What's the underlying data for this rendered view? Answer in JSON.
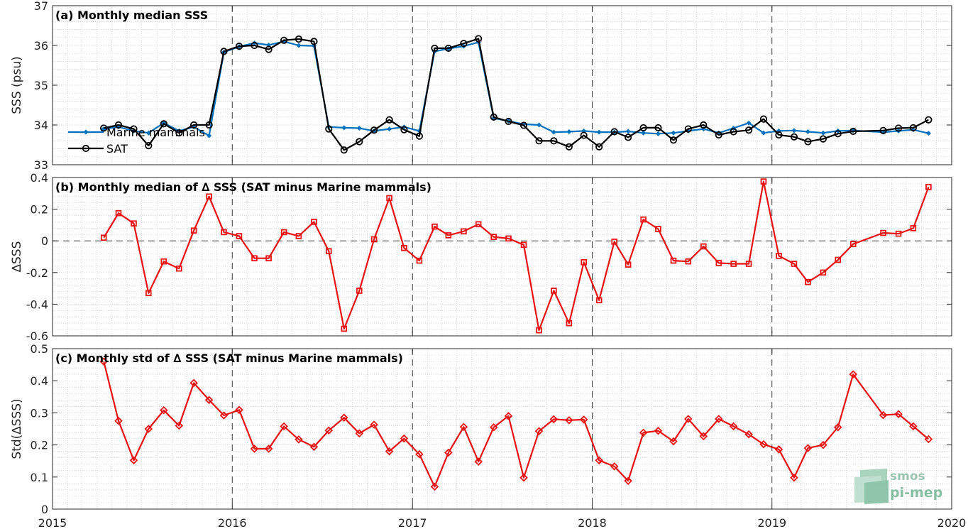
{
  "chart_data": [
    {
      "type": "line",
      "title": "(a) Monthly median SSS",
      "ylabel": "SSS (psu)",
      "xlim": [
        "2015-01-01",
        "2020-01-01"
      ],
      "ylim": [
        33,
        37
      ],
      "xticks": [
        "2015",
        "2016",
        "2017",
        "2018",
        "2019",
        "2020"
      ],
      "yticks": [
        "33",
        "34",
        "35",
        "36",
        "37"
      ],
      "grid": true,
      "legend": "bottom-left",
      "series": [
        {
          "name": "Marine mammals",
          "color": "#0072bd",
          "marker": "dot",
          "points": [
            [
              "2015-04-15",
              33.9
            ],
            [
              "2015-05-15",
              33.95
            ],
            [
              "2015-06-15",
              33.85
            ],
            [
              "2015-07-15",
              33.8
            ],
            [
              "2015-08-15",
              34.05
            ],
            [
              "2015-09-15",
              33.85
            ],
            [
              "2015-10-15",
              33.95
            ],
            [
              "2015-11-15",
              33.73
            ],
            [
              "2015-12-15",
              35.83
            ],
            [
              "2016-01-15",
              35.97
            ],
            [
              "2016-02-15",
              36.06
            ],
            [
              "2016-03-15",
              36.01
            ],
            [
              "2016-04-15",
              36.1
            ],
            [
              "2016-05-15",
              36.0
            ],
            [
              "2016-06-15",
              35.99
            ],
            [
              "2016-07-15",
              33.95
            ],
            [
              "2016-08-15",
              33.93
            ],
            [
              "2016-09-15",
              33.92
            ],
            [
              "2016-10-15",
              33.85
            ],
            [
              "2016-11-15",
              33.9
            ],
            [
              "2016-12-15",
              33.95
            ],
            [
              "2017-01-15",
              33.85
            ],
            [
              "2017-02-15",
              35.85
            ],
            [
              "2017-03-15",
              35.92
            ],
            [
              "2017-04-15",
              35.98
            ],
            [
              "2017-05-15",
              36.08
            ],
            [
              "2017-06-15",
              34.17
            ],
            [
              "2017-07-15",
              34.1
            ],
            [
              "2017-08-15",
              34.02
            ],
            [
              "2017-09-15",
              34.0
            ],
            [
              "2017-10-15",
              33.82
            ],
            [
              "2017-11-15",
              33.83
            ],
            [
              "2017-12-15",
              33.85
            ],
            [
              "2018-01-15",
              33.82
            ],
            [
              "2018-02-15",
              33.82
            ],
            [
              "2018-03-15",
              33.84
            ],
            [
              "2018-04-15",
              33.8
            ],
            [
              "2018-05-15",
              33.78
            ],
            [
              "2018-06-15",
              33.8
            ],
            [
              "2018-07-15",
              33.85
            ],
            [
              "2018-08-15",
              33.9
            ],
            [
              "2018-09-15",
              33.8
            ],
            [
              "2018-10-15",
              33.92
            ],
            [
              "2018-11-15",
              34.05
            ],
            [
              "2018-12-15",
              33.8
            ],
            [
              "2019-01-15",
              33.85
            ],
            [
              "2019-02-15",
              33.86
            ],
            [
              "2019-03-15",
              33.83
            ],
            [
              "2019-04-15",
              33.8
            ],
            [
              "2019-05-15",
              33.85
            ],
            [
              "2019-06-15",
              33.86
            ],
            [
              "2019-08-15",
              33.82
            ],
            [
              "2019-09-15",
              33.85
            ],
            [
              "2019-10-15",
              33.88
            ],
            [
              "2019-11-15",
              33.79
            ]
          ]
        },
        {
          "name": "SAT",
          "color": "#000000",
          "marker": "circle",
          "points": [
            [
              "2015-04-15",
              33.92
            ],
            [
              "2015-05-15",
              34.0
            ],
            [
              "2015-06-15",
              33.9
            ],
            [
              "2015-07-15",
              33.48
            ],
            [
              "2015-08-15",
              34.03
            ],
            [
              "2015-09-15",
              33.8
            ],
            [
              "2015-10-15",
              34.0
            ],
            [
              "2015-11-15",
              34.0
            ],
            [
              "2015-12-15",
              35.85
            ],
            [
              "2016-01-15",
              35.98
            ],
            [
              "2016-02-15",
              36.0
            ],
            [
              "2016-03-15",
              35.9
            ],
            [
              "2016-04-15",
              36.13
            ],
            [
              "2016-05-15",
              36.16
            ],
            [
              "2016-06-15",
              36.1
            ],
            [
              "2016-07-15",
              33.9
            ],
            [
              "2016-08-15",
              33.37
            ],
            [
              "2016-09-15",
              33.58
            ],
            [
              "2016-10-15",
              33.87
            ],
            [
              "2016-11-15",
              34.13
            ],
            [
              "2016-12-15",
              33.88
            ],
            [
              "2017-01-15",
              33.72
            ],
            [
              "2017-02-15",
              35.93
            ],
            [
              "2017-03-15",
              35.93
            ],
            [
              "2017-04-15",
              36.05
            ],
            [
              "2017-05-15",
              36.17
            ],
            [
              "2017-06-15",
              34.2
            ],
            [
              "2017-07-15",
              34.09
            ],
            [
              "2017-08-15",
              33.99
            ],
            [
              "2017-09-15",
              33.6
            ],
            [
              "2017-10-15",
              33.6
            ],
            [
              "2017-11-15",
              33.45
            ],
            [
              "2017-12-15",
              33.74
            ],
            [
              "2018-01-15",
              33.45
            ],
            [
              "2018-02-15",
              33.83
            ],
            [
              "2018-03-15",
              33.69
            ],
            [
              "2018-04-15",
              33.93
            ],
            [
              "2018-05-15",
              33.93
            ],
            [
              "2018-06-15",
              33.62
            ],
            [
              "2018-07-15",
              33.9
            ],
            [
              "2018-08-15",
              34.0
            ],
            [
              "2018-09-15",
              33.75
            ],
            [
              "2018-10-15",
              33.83
            ],
            [
              "2018-11-15",
              33.87
            ],
            [
              "2018-12-15",
              34.15
            ],
            [
              "2019-01-15",
              33.75
            ],
            [
              "2019-02-15",
              33.7
            ],
            [
              "2019-03-15",
              33.58
            ],
            [
              "2019-04-15",
              33.65
            ],
            [
              "2019-05-15",
              33.78
            ],
            [
              "2019-06-15",
              33.84
            ],
            [
              "2019-08-15",
              33.86
            ],
            [
              "2019-09-15",
              33.92
            ],
            [
              "2019-10-15",
              33.93
            ],
            [
              "2019-11-15",
              34.13
            ]
          ]
        }
      ]
    },
    {
      "type": "line",
      "title": "(b) Monthly median of ∆ SSS (SAT minus Marine mammals)",
      "ylabel": "∆SSS",
      "xlim": [
        "2015-01-01",
        "2020-01-01"
      ],
      "ylim": [
        -0.6,
        0.4
      ],
      "xticks": [
        "2015",
        "2016",
        "2017",
        "2018",
        "2019",
        "2020"
      ],
      "yticks": [
        "-0.6",
        "-0.4",
        "-0.2",
        "0",
        "0.2",
        "0.4"
      ],
      "grid": true,
      "zero_line": true,
      "series": [
        {
          "color": "#e81010",
          "marker": "square",
          "points": [
            [
              "2015-04-15",
              0.02
            ],
            [
              "2015-05-15",
              0.175
            ],
            [
              "2015-06-15",
              0.11
            ],
            [
              "2015-07-15",
              -0.33
            ],
            [
              "2015-08-15",
              -0.13
            ],
            [
              "2015-09-15",
              -0.175
            ],
            [
              "2015-10-15",
              0.065
            ],
            [
              "2015-11-15",
              0.28
            ],
            [
              "2015-12-15",
              0.055
            ],
            [
              "2016-01-15",
              0.03
            ],
            [
              "2016-02-15",
              -0.11
            ],
            [
              "2016-03-15",
              -0.11
            ],
            [
              "2016-04-15",
              0.055
            ],
            [
              "2016-05-15",
              0.03
            ],
            [
              "2016-06-15",
              0.12
            ],
            [
              "2016-07-15",
              -0.065
            ],
            [
              "2016-08-15",
              -0.555
            ],
            [
              "2016-09-15",
              -0.315
            ],
            [
              "2016-10-15",
              0.01
            ],
            [
              "2016-11-15",
              0.27
            ],
            [
              "2016-12-15",
              -0.045
            ],
            [
              "2017-01-15",
              -0.125
            ],
            [
              "2017-02-15",
              0.09
            ],
            [
              "2017-03-15",
              0.035
            ],
            [
              "2017-04-15",
              0.06
            ],
            [
              "2017-05-15",
              0.105
            ],
            [
              "2017-06-15",
              0.025
            ],
            [
              "2017-07-15",
              0.015
            ],
            [
              "2017-08-15",
              -0.025
            ],
            [
              "2017-09-15",
              -0.565
            ],
            [
              "2017-10-15",
              -0.315
            ],
            [
              "2017-11-15",
              -0.52
            ],
            [
              "2017-12-15",
              -0.135
            ],
            [
              "2018-01-15",
              -0.375
            ],
            [
              "2018-02-15",
              -0.005
            ],
            [
              "2018-03-15",
              -0.15
            ],
            [
              "2018-04-15",
              0.135
            ],
            [
              "2018-05-15",
              0.075
            ],
            [
              "2018-06-15",
              -0.125
            ],
            [
              "2018-07-15",
              -0.13
            ],
            [
              "2018-08-15",
              -0.035
            ],
            [
              "2018-09-15",
              -0.14
            ],
            [
              "2018-10-15",
              -0.145
            ],
            [
              "2018-11-15",
              -0.145
            ],
            [
              "2018-12-15",
              0.375
            ],
            [
              "2019-01-15",
              -0.095
            ],
            [
              "2019-02-15",
              -0.145
            ],
            [
              "2019-03-15",
              -0.26
            ],
            [
              "2019-04-15",
              -0.2
            ],
            [
              "2019-05-15",
              -0.12
            ],
            [
              "2019-06-15",
              -0.02
            ],
            [
              "2019-08-15",
              0.05
            ],
            [
              "2019-09-15",
              0.045
            ],
            [
              "2019-10-15",
              0.08
            ],
            [
              "2019-11-15",
              0.34
            ]
          ]
        }
      ]
    },
    {
      "type": "line",
      "title": "(c) Monthly std of ∆ SSS (SAT minus Marine mammals)",
      "ylabel": "Std(∆SSS)",
      "xlim": [
        "2015-01-01",
        "2020-01-01"
      ],
      "ylim": [
        0,
        0.5
      ],
      "xticks": [
        "2015",
        "2016",
        "2017",
        "2018",
        "2019",
        "2020"
      ],
      "yticks": [
        "0",
        "0.1",
        "0.2",
        "0.3",
        "0.4",
        "0.5"
      ],
      "grid": true,
      "series": [
        {
          "color": "#e81010",
          "marker": "diamond",
          "points": [
            [
              "2015-04-15",
              0.46
            ],
            [
              "2015-05-15",
              0.275
            ],
            [
              "2015-06-15",
              0.152
            ],
            [
              "2015-07-15",
              0.25
            ],
            [
              "2015-08-15",
              0.308
            ],
            [
              "2015-09-15",
              0.26
            ],
            [
              "2015-10-15",
              0.393
            ],
            [
              "2015-11-15",
              0.34
            ],
            [
              "2015-12-15",
              0.292
            ],
            [
              "2016-01-15",
              0.309
            ],
            [
              "2016-02-15",
              0.188
            ],
            [
              "2016-03-15",
              0.188
            ],
            [
              "2016-04-15",
              0.258
            ],
            [
              "2016-05-15",
              0.217
            ],
            [
              "2016-06-15",
              0.194
            ],
            [
              "2016-07-15",
              0.245
            ],
            [
              "2016-08-15",
              0.285
            ],
            [
              "2016-09-15",
              0.236
            ],
            [
              "2016-10-15",
              0.263
            ],
            [
              "2016-11-15",
              0.18
            ],
            [
              "2016-12-15",
              0.22
            ],
            [
              "2017-01-15",
              0.171
            ],
            [
              "2017-02-15",
              0.07
            ],
            [
              "2017-03-15",
              0.176
            ],
            [
              "2017-04-15",
              0.256
            ],
            [
              "2017-05-15",
              0.148
            ],
            [
              "2017-06-15",
              0.255
            ],
            [
              "2017-07-15",
              0.29
            ],
            [
              "2017-08-15",
              0.098
            ],
            [
              "2017-09-15",
              0.243
            ],
            [
              "2017-10-15",
              0.28
            ],
            [
              "2017-11-15",
              0.277
            ],
            [
              "2017-12-15",
              0.279
            ],
            [
              "2018-01-15",
              0.152
            ],
            [
              "2018-02-15",
              0.133
            ],
            [
              "2018-03-15",
              0.088
            ],
            [
              "2018-04-15",
              0.238
            ],
            [
              "2018-05-15",
              0.244
            ],
            [
              "2018-06-15",
              0.211
            ],
            [
              "2018-07-15",
              0.281
            ],
            [
              "2018-08-15",
              0.227
            ],
            [
              "2018-09-15",
              0.281
            ],
            [
              "2018-10-15",
              0.258
            ],
            [
              "2018-11-15",
              0.233
            ],
            [
              "2018-12-15",
              0.202
            ],
            [
              "2019-01-15",
              0.186
            ],
            [
              "2019-02-15",
              0.098
            ],
            [
              "2019-03-15",
              0.19
            ],
            [
              "2019-04-15",
              0.2
            ],
            [
              "2019-05-15",
              0.255
            ],
            [
              "2019-06-15",
              0.42
            ],
            [
              "2019-08-15",
              0.293
            ],
            [
              "2019-09-15",
              0.296
            ],
            [
              "2019-10-15",
              0.258
            ],
            [
              "2019-11-15",
              0.218
            ]
          ]
        }
      ]
    }
  ],
  "logo": {
    "line1": "smos",
    "line2": "pi-mep"
  }
}
